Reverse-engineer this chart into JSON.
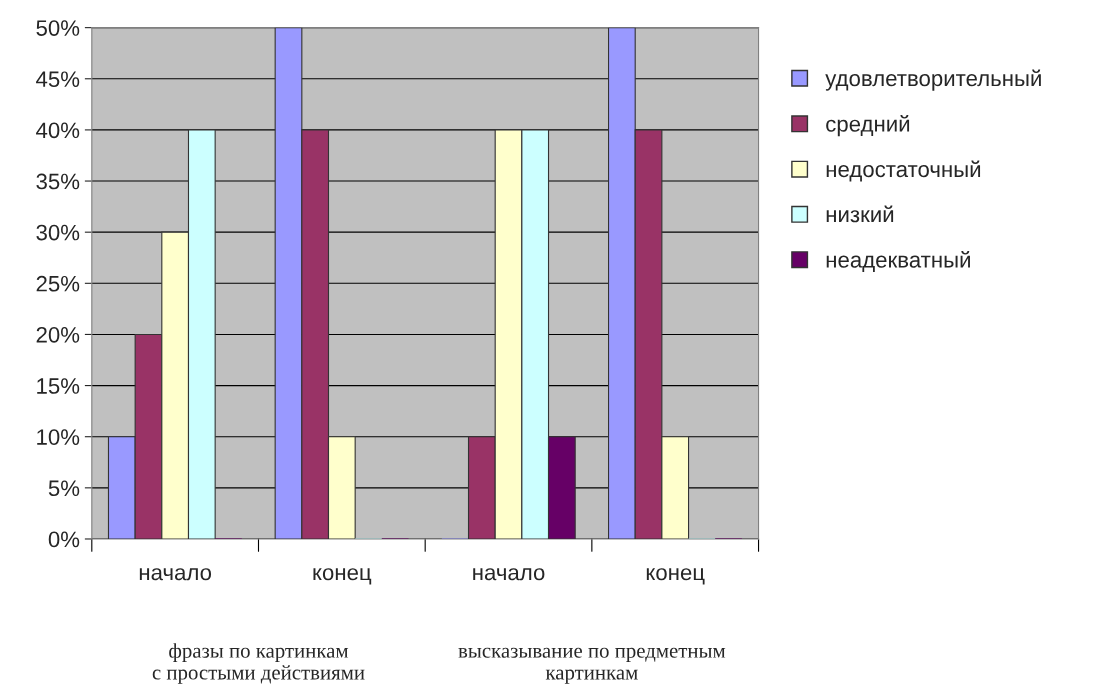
{
  "chart_data": {
    "type": "bar",
    "categories": [
      "начало",
      "конец",
      "начало",
      "конец"
    ],
    "series": [
      {
        "name": "удовлетворительный",
        "color": "#9999ff",
        "values": [
          10,
          50,
          0,
          50
        ]
      },
      {
        "name": "средний",
        "color": "#993366",
        "values": [
          20,
          40,
          10,
          40
        ]
      },
      {
        "name": "недостаточный",
        "color": "#ffffcc",
        "values": [
          30,
          10,
          40,
          10
        ]
      },
      {
        "name": "низкий",
        "color": "#ccffff",
        "values": [
          40,
          0,
          40,
          0
        ]
      },
      {
        "name": "неадекватный",
        "color": "#660066",
        "values": [
          0,
          0,
          10,
          0
        ]
      }
    ],
    "ylim": [
      0,
      50
    ],
    "yticks": [
      {
        "value": 0,
        "label": "0%"
      },
      {
        "value": 5,
        "label": "5%"
      },
      {
        "value": 10,
        "label": "10%"
      },
      {
        "value": 15,
        "label": "15%"
      },
      {
        "value": 20,
        "label": "20%"
      },
      {
        "value": 25,
        "label": "25%"
      },
      {
        "value": 30,
        "label": "30%"
      },
      {
        "value": 35,
        "label": "35%"
      },
      {
        "value": 40,
        "label": "40%"
      },
      {
        "value": 45,
        "label": "45%"
      },
      {
        "value": 50,
        "label": "50%"
      }
    ],
    "grid": "y",
    "legend": "right",
    "annotations": [
      "фразы по картинкам\nс простыми действиями",
      "высказывание по предметным\nкартинкам"
    ]
  }
}
